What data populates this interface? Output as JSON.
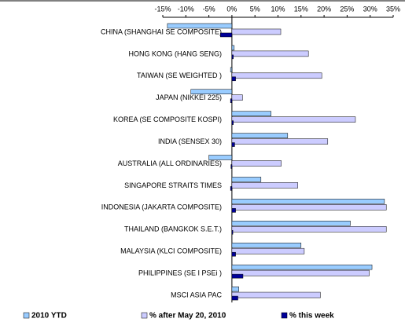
{
  "chart_data": {
    "type": "bar",
    "orientation": "horizontal",
    "categories": [
      "CHINA (SHANGHAI SE COMPOSITE)",
      "HONG KONG (HANG SENG)",
      "TAIWAN (SE WEIGHTED )",
      "JAPAN (NIKKEI 225)",
      "KOREA (SE COMPOSITE KOSPI)",
      "INDIA (SENSEX 30)",
      "AUSTRALIA (ALL ORDINARIES)",
      "SINGAPORE STRAITS TIMES",
      "INDONESIA (JAKARTA COMPOSITE)",
      "THAILAND (BANGKOK S.E.T.)",
      "MALAYSIA (KLCI COMPOSITE)",
      "PHILIPPINES (SE I PSEi )",
      "MSCI ASIA PAC"
    ],
    "series": [
      {
        "name": "2010 YTD",
        "color": "#99ccff",
        "values": [
          -14,
          0.5,
          -0.3,
          -8.9,
          8.5,
          12.1,
          -5,
          6.3,
          33.1,
          25.7,
          15,
          30.4,
          1.5
        ]
      },
      {
        "name": "% after May 20, 2010",
        "color": "#ccccff",
        "values": [
          10.6,
          16.6,
          19.5,
          2.3,
          26.8,
          20.8,
          10.7,
          14.3,
          33.5,
          33.5,
          15.7,
          29.8,
          19.2
        ]
      },
      {
        "name": "% this week",
        "color": "#000099",
        "values": [
          -2.5,
          0.3,
          0.8,
          -0.3,
          0.3,
          0.6,
          -0.2,
          -0.3,
          0.8,
          0.2,
          0.8,
          2.4,
          1.3
        ]
      }
    ],
    "xlim": [
      -15,
      35
    ],
    "xticks": [
      {
        "value": -15,
        "label": "-15%"
      },
      {
        "value": -10,
        "label": "-10%"
      },
      {
        "value": -5,
        "label": "-5%"
      },
      {
        "value": 0,
        "label": "0%"
      },
      {
        "value": 5,
        "label": "5%"
      },
      {
        "value": 10,
        "label": "10%"
      },
      {
        "value": 15,
        "label": "15%"
      },
      {
        "value": 20,
        "label": "20%"
      },
      {
        "value": 25,
        "label": "25%"
      },
      {
        "value": 30,
        "label": "30%"
      },
      {
        "value": 35,
        "label": "35%"
      }
    ],
    "grid": false,
    "legend": "bottom"
  }
}
